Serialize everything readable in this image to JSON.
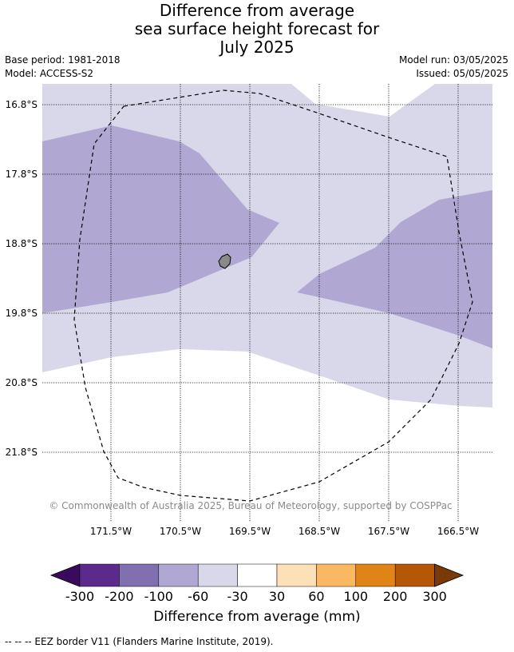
{
  "title_lines": [
    "Difference from average",
    "sea surface height forecast for",
    "July 2025"
  ],
  "base_period": "Base period: 1981-2018",
  "model": "Model: ACCESS-S2",
  "model_run": "Model run: 03/05/2025",
  "issued": "Issued: 05/05/2025",
  "copyright": "© Commonwealth of Australia 2025, Bureau of Meteorology, supported by COSPPac",
  "lat_labels": [
    "16.8°S",
    "17.8°S",
    "18.8°S",
    "19.8°S",
    "20.8°S",
    "21.8°S"
  ],
  "lon_labels": [
    "171.5°W",
    "170.5°W",
    "169.5°W",
    "168.5°W",
    "167.5°W",
    "166.5°W"
  ],
  "colorbar": {
    "label": "Difference from average (mm)",
    "ticks": [
      "-300",
      "-200",
      "-100",
      "-60",
      "-30",
      "30",
      "60",
      "100",
      "200",
      "300"
    ],
    "colors": [
      "#3b0a5e",
      "#5b2a8c",
      "#8070b0",
      "#b0a8d2",
      "#d8d8ea",
      "#ffffff",
      "#fde0b8",
      "#fbb862",
      "#e08418",
      "#b45808",
      "#7a3a08"
    ]
  },
  "legend_note": "--  --  -- EEZ border V11 (Flanders Marine Institute, 2019)."
}
